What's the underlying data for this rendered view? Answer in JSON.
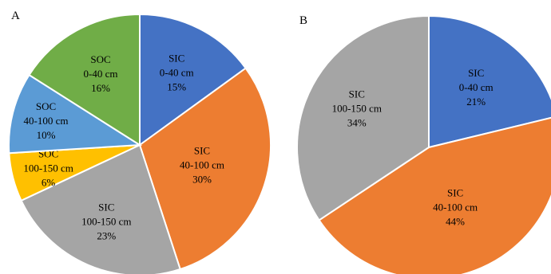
{
  "chart_data": [
    {
      "type": "pie",
      "panel": "A",
      "slices": [
        {
          "label": [
            "SIC",
            "0-40 cm",
            "15%"
          ],
          "value": 15,
          "color": "#4472C4",
          "text_color": "#000000"
        },
        {
          "label": [
            "SIC",
            "40-100 cm",
            "30%"
          ],
          "value": 30,
          "color": "#ED7D31",
          "text_color": "#000000"
        },
        {
          "label": [
            "SIC",
            "100-150 cm",
            "23%"
          ],
          "value": 23,
          "color": "#A5A5A5",
          "text_color": "#000000"
        },
        {
          "label": [
            "SOC",
            "100-150 cm",
            "6%"
          ],
          "value": 6,
          "color": "#FFC000",
          "text_color": "#000000"
        },
        {
          "label": [
            "SOC",
            "40-100 cm",
            "10%"
          ],
          "value": 10,
          "color": "#5B9BD5",
          "text_color": "#000000"
        },
        {
          "label": [
            "SOC",
            "0-40 cm",
            "16%"
          ],
          "value": 16,
          "color": "#70AD47",
          "text_color": "#000000"
        }
      ]
    },
    {
      "type": "pie",
      "panel": "B",
      "slices": [
        {
          "label": [
            "SIC",
            "0-40 cm",
            "21%"
          ],
          "value": 21,
          "color": "#4472C4",
          "text_color": "#000000"
        },
        {
          "label": [
            "SIC",
            "40-100 cm",
            "44%"
          ],
          "value": 44,
          "color": "#ED7D31",
          "text_color": "#000000"
        },
        {
          "label": [
            "SIC",
            "100-150 cm",
            "34%"
          ],
          "value": 34,
          "color": "#A5A5A5",
          "text_color": "#000000"
        }
      ]
    }
  ]
}
